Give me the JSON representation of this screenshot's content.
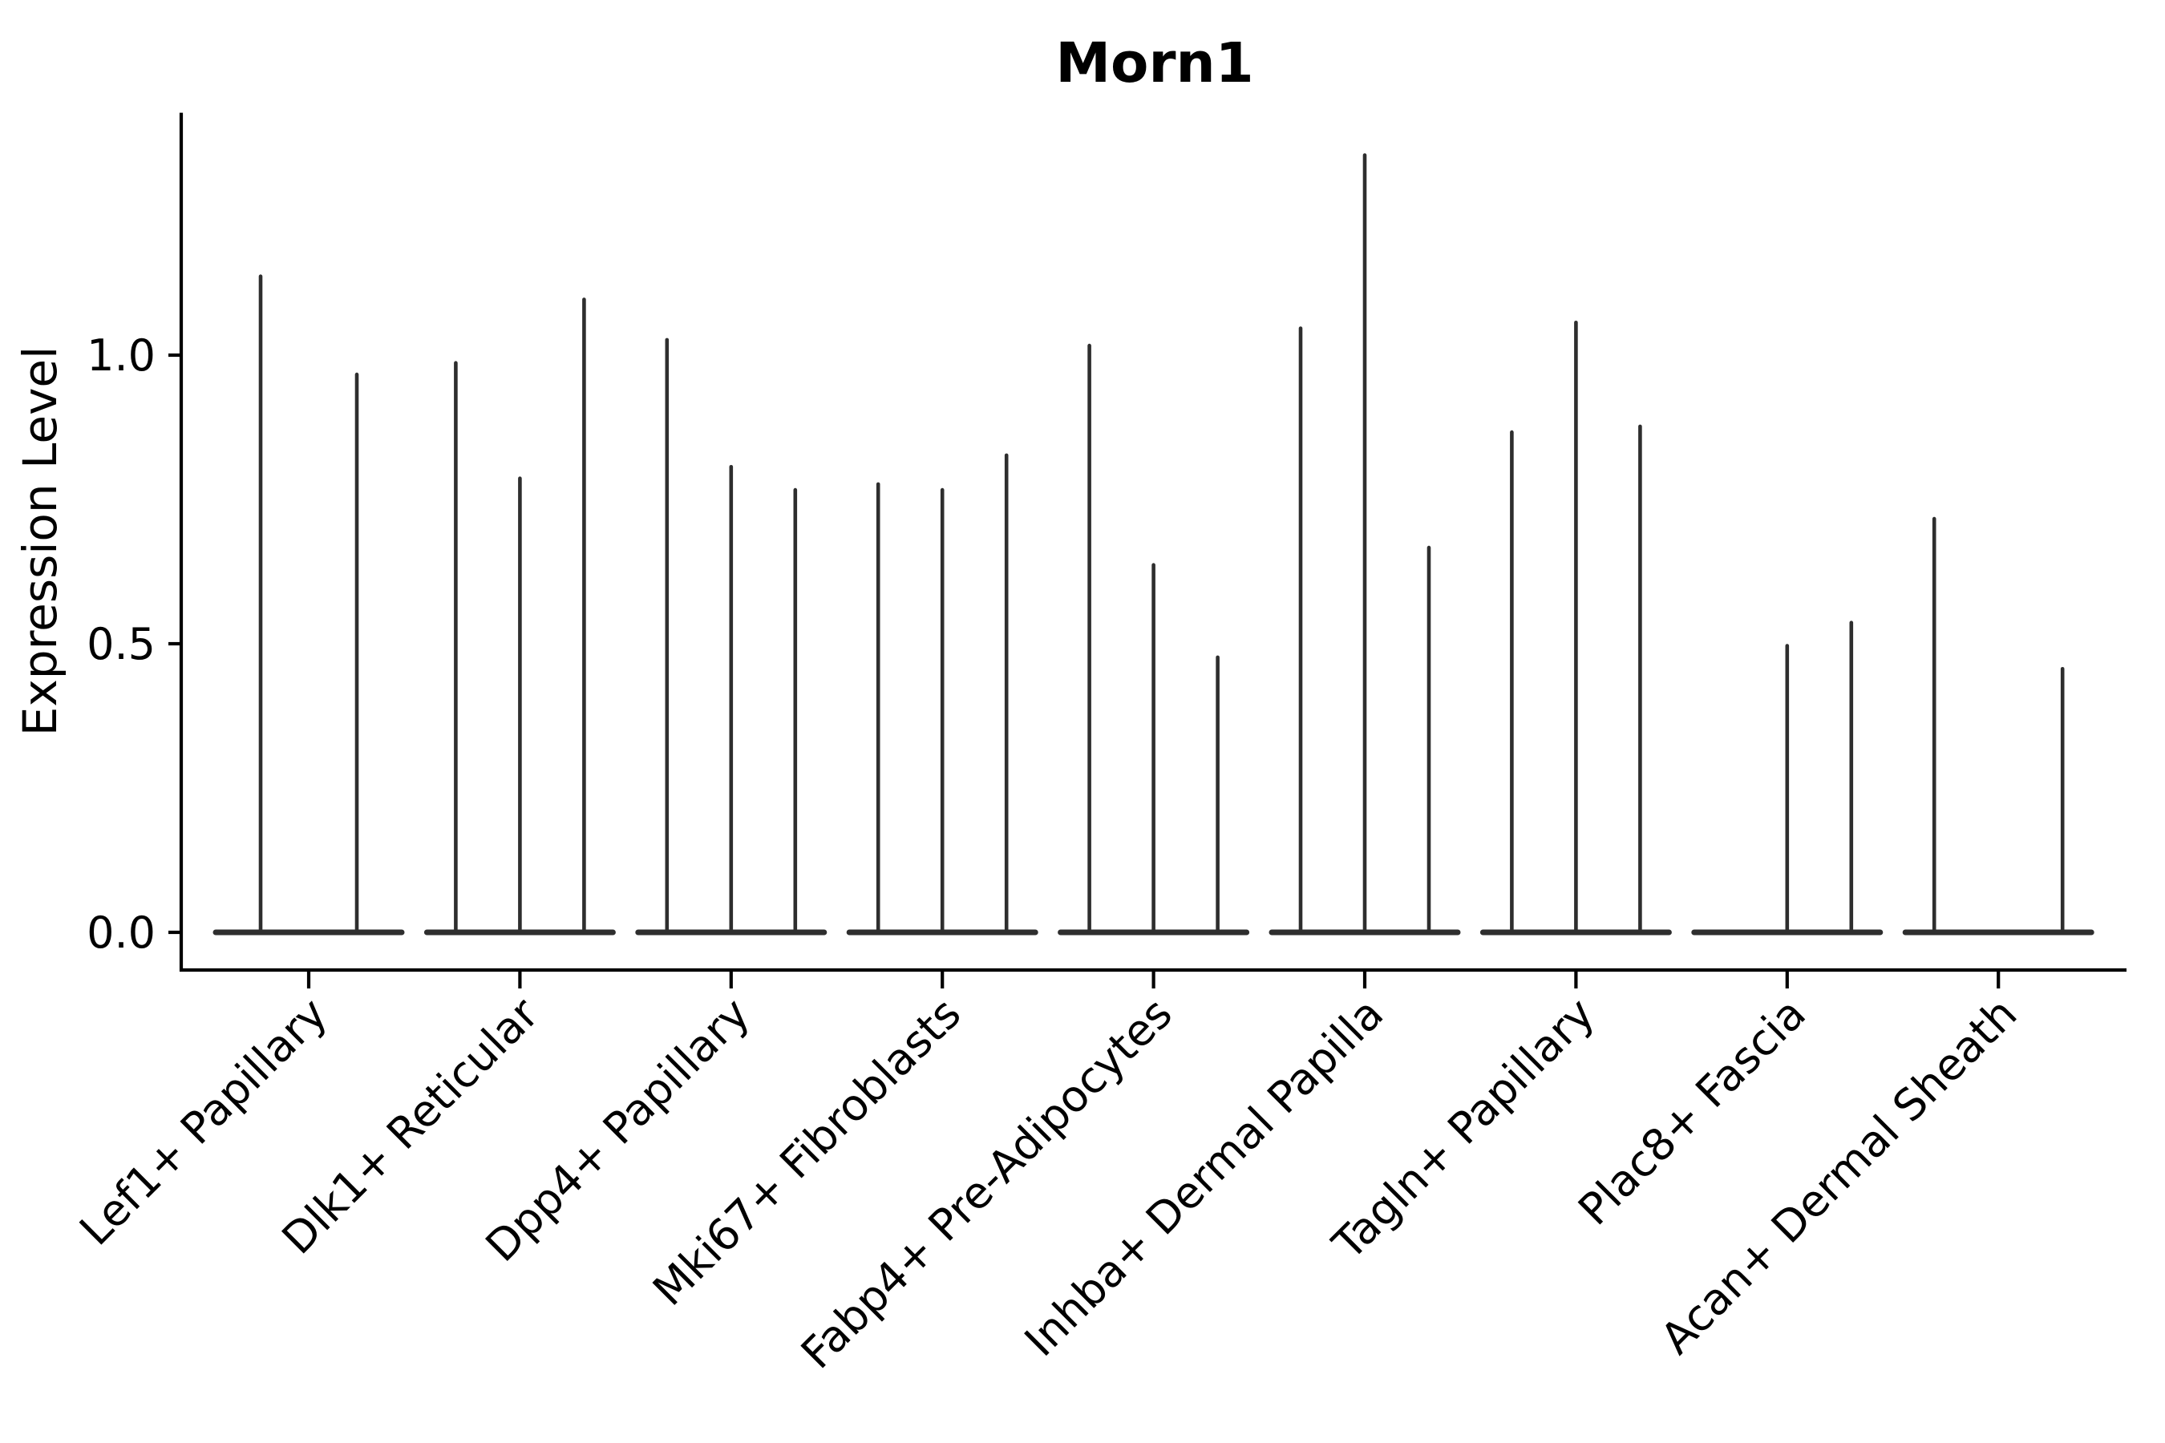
{
  "title": "Morn1",
  "axes": {
    "ylabel": "Expression Level",
    "ytick_labels": [
      "0.0",
      "0.5",
      "1.0"
    ]
  },
  "style": {
    "violin_color": "#2e2e2e",
    "axis_color": "#000000",
    "background": "#ffffff"
  },
  "chart_data": {
    "type": "violin",
    "title": "Morn1",
    "xlabel": "",
    "ylabel": "Expression Level",
    "yticks": [
      0.0,
      0.5,
      1.0
    ],
    "ylim": [
      -0.07,
      1.42
    ],
    "grid": false,
    "legend_position": "none",
    "description": "Violin plot of Morn1 expression per fibroblast cell-type group; each group contains 2-3 very thin violins (most cells at 0, flat base at y=0) whose upper tails reach the listed maximum expression values. A value of 0 means a completely flat violin with no spike.",
    "categories": [
      "Lef1+ Papillary",
      "Dlk1+ Reticular",
      "Dpp4+ Papillary",
      "Mki67+ Fibroblasts",
      "Fabp4+ Pre-Adipocytes",
      "Inhba+ Dermal Papilla",
      "Tagln+ Papillary",
      "Plac8+ Fascia",
      "Acan+ Dermal Sheath"
    ],
    "groups": [
      {
        "label": "Lef1+ Papillary",
        "violin_max_values": [
          1.14,
          0.97
        ]
      },
      {
        "label": "Dlk1+ Reticular",
        "violin_max_values": [
          0.99,
          0.79,
          1.1
        ]
      },
      {
        "label": "Dpp4+ Papillary",
        "violin_max_values": [
          1.03,
          0.81,
          0.77
        ]
      },
      {
        "label": "Mki67+ Fibroblasts",
        "violin_max_values": [
          0.78,
          0.77,
          0.83
        ]
      },
      {
        "label": "Fabp4+ Pre-Adipocytes",
        "violin_max_values": [
          1.02,
          0.64,
          0.48
        ]
      },
      {
        "label": "Inhba+ Dermal Papilla",
        "violin_max_values": [
          1.05,
          1.35,
          0.67
        ]
      },
      {
        "label": "Tagln+ Papillary",
        "violin_max_values": [
          0.87,
          1.06,
          0.88
        ]
      },
      {
        "label": "Plac8+ Fascia",
        "violin_max_values": [
          0.0,
          0.5,
          0.54
        ]
      },
      {
        "label": "Acan+ Dermal Sheath",
        "violin_max_values": [
          0.72,
          0.0,
          0.46
        ]
      }
    ]
  }
}
